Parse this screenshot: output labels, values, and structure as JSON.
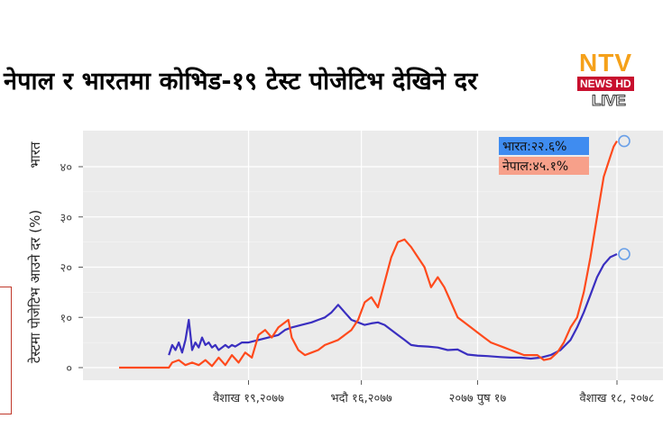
{
  "title": "नेपाल र भारतमा  कोभिड-१९ टेस्ट पोजेटिभ देखिने दर",
  "logo": {
    "brand": "NTV",
    "sub": "NEWS HD",
    "live": "LIVE"
  },
  "colors": {
    "india": "#3a2fc0",
    "nepal": "#ff4a1c",
    "panel": "#ebebeb",
    "grid": "#ffffff",
    "india_label_bg": "#3f8cf0",
    "nepal_label_bg": "#f7a08a"
  },
  "chart_data": {
    "type": "line",
    "title": "नेपाल र भारतमा  कोभिड-१९ टेस्ट पोजेटिभ देखिने दर",
    "ylabel": "टेस्टमा पोजेटिभ आउने दर (%)",
    "ylabel_extra": "भारत",
    "ylim": [
      -3,
      47
    ],
    "xlim": [
      0,
      15
    ],
    "yticks": [
      0,
      10,
      20,
      30,
      40
    ],
    "ytick_labels": [
      "०",
      "१०",
      "२०",
      "३०",
      "४०"
    ],
    "xticks": [
      {
        "x": 3.9,
        "label": "वैशाख १९,२०७७"
      },
      {
        "x": 7.3,
        "label": "भदौ १६,२०७७"
      },
      {
        "x": 10.8,
        "label": "२०७७ पुष १७"
      },
      {
        "x": 15.0,
        "label": "वैशाख १८, २०७८"
      }
    ],
    "end_labels": {
      "india": "भारत:२२.६%",
      "nepal": "नेपाल:४५.१%"
    },
    "series": [
      {
        "name": "भारत",
        "key": "india",
        "x": [
          1.5,
          1.6,
          1.7,
          1.8,
          1.9,
          2.0,
          2.1,
          2.2,
          2.3,
          2.4,
          2.5,
          2.6,
          2.7,
          2.8,
          2.9,
          3.0,
          3.1,
          3.2,
          3.3,
          3.4,
          3.5,
          3.7,
          3.9,
          4.2,
          4.5,
          4.8,
          5.0,
          5.2,
          5.5,
          5.8,
          6.0,
          6.2,
          6.4,
          6.6,
          6.8,
          7.0,
          7.2,
          7.4,
          7.6,
          7.8,
          8.0,
          8.2,
          8.4,
          8.6,
          8.8,
          9.0,
          9.3,
          9.6,
          9.9,
          10.2,
          10.5,
          10.8,
          11.1,
          11.5,
          11.8,
          12.1,
          12.4,
          12.7,
          13.0,
          13.3,
          13.6,
          13.8,
          14.0,
          14.2,
          14.4,
          14.6,
          14.8,
          15.0
        ],
        "values": [
          2.5,
          4.5,
          3.5,
          5.0,
          3.0,
          5.5,
          9.5,
          3.5,
          5.0,
          4.0,
          6.0,
          4.5,
          5.0,
          4.0,
          4.5,
          3.5,
          4.0,
          4.5,
          4.0,
          4.5,
          4.2,
          5.0,
          5.0,
          5.5,
          6.0,
          6.5,
          7.5,
          8.0,
          8.5,
          9.0,
          9.5,
          10.0,
          11.0,
          12.5,
          11.0,
          9.5,
          9.0,
          8.5,
          8.8,
          9.0,
          8.5,
          7.5,
          6.5,
          5.5,
          4.5,
          4.3,
          4.2,
          4.0,
          3.5,
          3.6,
          2.6,
          2.4,
          2.3,
          2.1,
          2.0,
          2.0,
          1.8,
          2.0,
          2.5,
          3.5,
          5.5,
          8.0,
          11.0,
          14.5,
          18.0,
          20.5,
          22.0,
          22.6
        ]
      },
      {
        "name": "नेपाल",
        "key": "nepal",
        "x": [
          0.0,
          0.5,
          1.0,
          1.5,
          1.6,
          1.8,
          2.0,
          2.2,
          2.4,
          2.6,
          2.8,
          3.0,
          3.2,
          3.4,
          3.6,
          3.8,
          4.0,
          4.2,
          4.4,
          4.6,
          4.8,
          5.0,
          5.1,
          5.2,
          5.4,
          5.6,
          5.8,
          6.0,
          6.2,
          6.4,
          6.6,
          6.8,
          7.0,
          7.2,
          7.4,
          7.6,
          7.8,
          8.0,
          8.2,
          8.4,
          8.6,
          8.8,
          9.0,
          9.2,
          9.4,
          9.6,
          9.8,
          10.0,
          10.2,
          10.4,
          10.6,
          10.8,
          11.0,
          11.2,
          11.4,
          11.6,
          11.8,
          12.0,
          12.2,
          12.4,
          12.6,
          12.8,
          13.0,
          13.2,
          13.4,
          13.6,
          13.8,
          14.0,
          14.2,
          14.4,
          14.6,
          14.8,
          14.9,
          15.0
        ],
        "values": [
          0,
          0,
          0,
          0,
          1.0,
          1.5,
          0.5,
          1.0,
          0.5,
          1.5,
          0.3,
          2.0,
          0.5,
          2.5,
          1.0,
          3.0,
          2.0,
          6.5,
          7.5,
          6.0,
          8.0,
          9.0,
          9.5,
          6.0,
          3.5,
          2.5,
          3.0,
          3.5,
          4.5,
          5.0,
          5.5,
          6.5,
          7.5,
          9.5,
          13.0,
          14.0,
          12.0,
          17.0,
          22.0,
          25.0,
          25.5,
          24.0,
          22.0,
          20.0,
          16.0,
          18.0,
          16.0,
          13.0,
          10.0,
          9.0,
          8.0,
          7.0,
          6.0,
          5.0,
          4.5,
          4.0,
          3.5,
          3.0,
          2.5,
          2.5,
          2.5,
          1.5,
          1.8,
          3.0,
          5.0,
          8.0,
          10.0,
          15.0,
          22.0,
          30.0,
          38.0,
          42.0,
          44.0,
          45.1
        ]
      }
    ]
  }
}
